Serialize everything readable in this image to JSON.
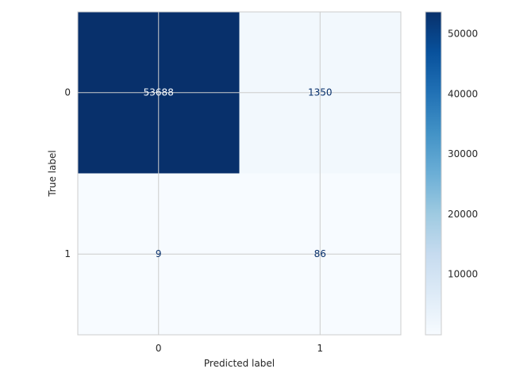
{
  "chart_data": {
    "type": "heatmap",
    "title": "",
    "xlabel": "Predicted label",
    "ylabel": "True label",
    "x_categories": [
      "0",
      "1"
    ],
    "y_categories": [
      "0",
      "1"
    ],
    "values": [
      [
        53688,
        1350
      ],
      [
        9,
        86
      ]
    ],
    "value_labels": [
      [
        "53688",
        "1350"
      ],
      [
        "9",
        "86"
      ]
    ],
    "colormap": "Blues",
    "color_low": "#f7fbff",
    "color_high": "#08306b",
    "colorbar_range": [
      9,
      53688
    ],
    "colorbar_ticks": [
      10000,
      20000,
      30000,
      40000,
      50000
    ],
    "colorbar_tick_labels": [
      "10000",
      "20000",
      "30000",
      "40000",
      "50000"
    ],
    "grid": true,
    "text_color_dark_cell": "#f7fbff",
    "text_color_light_cell": "#08306b"
  }
}
